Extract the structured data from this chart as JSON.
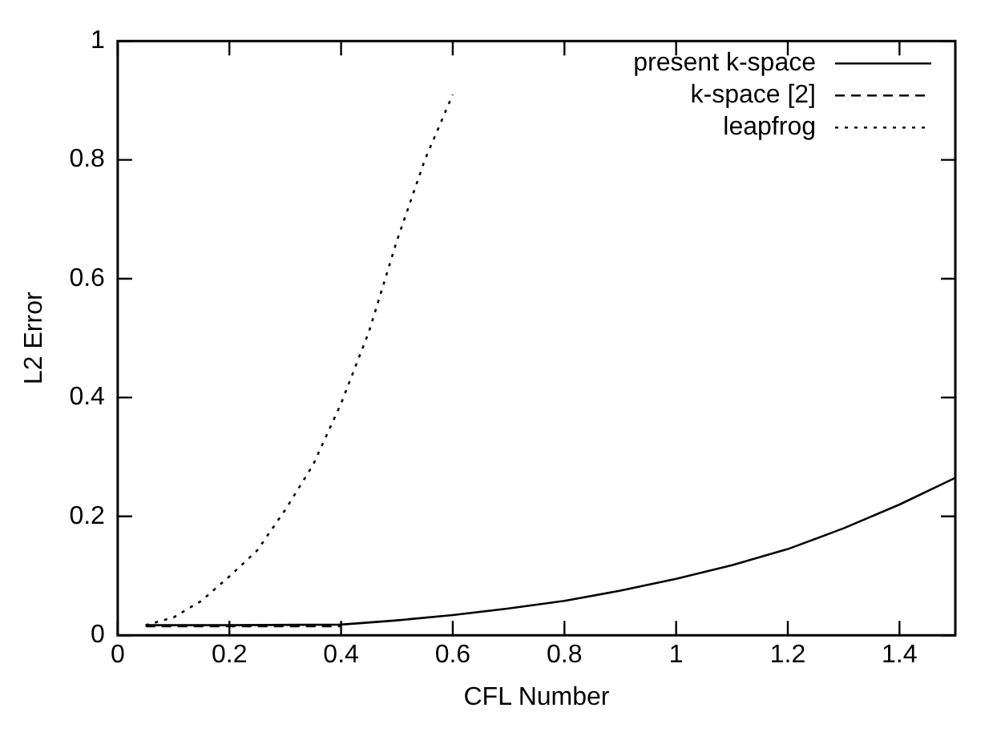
{
  "chart_data": {
    "type": "line",
    "xlabel": "CFL Number",
    "ylabel": "L2 Error",
    "xlim": [
      0,
      1.5
    ],
    "xticks": [
      0,
      0.2,
      0.4,
      0.6,
      0.8,
      1,
      1.2,
      1.4
    ],
    "ylim": [
      0,
      1
    ],
    "yticks": [
      0,
      0.2,
      0.4,
      0.6,
      0.8,
      1
    ],
    "grid": false,
    "legend": "top right",
    "marker": "none",
    "series": [
      {
        "name": "present k-space",
        "color": "#000000",
        "line_style": "solid",
        "x": [
          0.05,
          0.2,
          0.4,
          0.5,
          0.6,
          0.7,
          0.8,
          0.9,
          1.0,
          1.1,
          1.2,
          1.3,
          1.4,
          1.5
        ],
        "values": [
          0.017,
          0.017,
          0.018,
          0.025,
          0.034,
          0.045,
          0.058,
          0.075,
          0.095,
          0.118,
          0.145,
          0.18,
          0.22,
          0.265
        ]
      },
      {
        "name": "k-space [2]",
        "color": "#000000",
        "line_style": "dashed",
        "x": [
          0.05,
          0.2,
          0.4
        ],
        "values": [
          0.015,
          0.015,
          0.015
        ]
      },
      {
        "name": "leapfrog",
        "color": "#000000",
        "line_style": "dotted",
        "x": [
          0.05,
          0.1,
          0.15,
          0.2,
          0.25,
          0.3,
          0.35,
          0.4,
          0.45,
          0.5,
          0.55,
          0.6
        ],
        "values": [
          0.017,
          0.03,
          0.058,
          0.099,
          0.143,
          0.211,
          0.287,
          0.39,
          0.511,
          0.664,
          0.8,
          0.91
        ]
      }
    ]
  }
}
